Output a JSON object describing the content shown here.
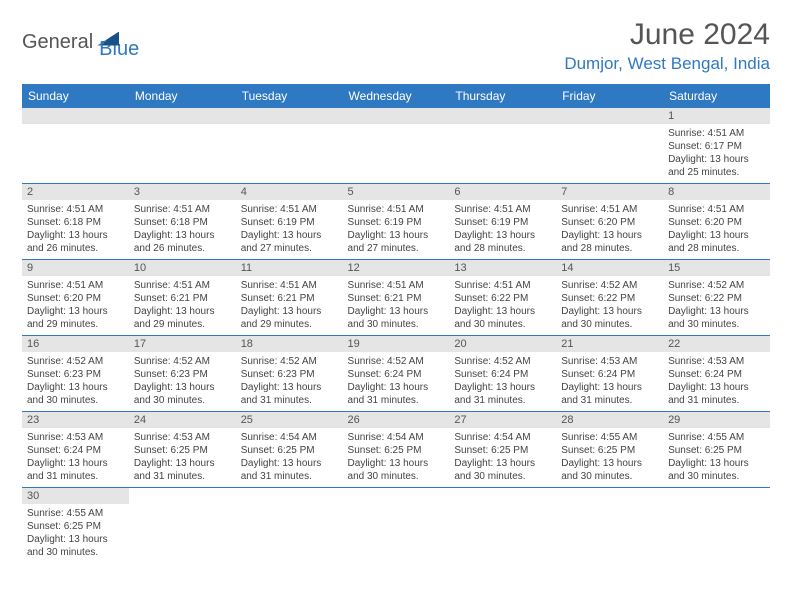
{
  "logo": {
    "part1": "General",
    "part2": "Blue"
  },
  "title": "June 2024",
  "subtitle": "Dumjor, West Bengal, India",
  "colors": {
    "accent": "#2f79c2",
    "header_bg": "#2f79c2",
    "header_text": "#ffffff",
    "daynum_bg": "#e5e5e5",
    "border": "#2f79c2",
    "text": "#444444"
  },
  "weekdays": [
    "Sunday",
    "Monday",
    "Tuesday",
    "Wednesday",
    "Thursday",
    "Friday",
    "Saturday"
  ],
  "weeks": [
    [
      null,
      null,
      null,
      null,
      null,
      null,
      {
        "n": "1",
        "sr": "4:51 AM",
        "ss": "6:17 PM",
        "dl": "13 hours and 25 minutes."
      }
    ],
    [
      {
        "n": "2",
        "sr": "4:51 AM",
        "ss": "6:18 PM",
        "dl": "13 hours and 26 minutes."
      },
      {
        "n": "3",
        "sr": "4:51 AM",
        "ss": "6:18 PM",
        "dl": "13 hours and 26 minutes."
      },
      {
        "n": "4",
        "sr": "4:51 AM",
        "ss": "6:19 PM",
        "dl": "13 hours and 27 minutes."
      },
      {
        "n": "5",
        "sr": "4:51 AM",
        "ss": "6:19 PM",
        "dl": "13 hours and 27 minutes."
      },
      {
        "n": "6",
        "sr": "4:51 AM",
        "ss": "6:19 PM",
        "dl": "13 hours and 28 minutes."
      },
      {
        "n": "7",
        "sr": "4:51 AM",
        "ss": "6:20 PM",
        "dl": "13 hours and 28 minutes."
      },
      {
        "n": "8",
        "sr": "4:51 AM",
        "ss": "6:20 PM",
        "dl": "13 hours and 28 minutes."
      }
    ],
    [
      {
        "n": "9",
        "sr": "4:51 AM",
        "ss": "6:20 PM",
        "dl": "13 hours and 29 minutes."
      },
      {
        "n": "10",
        "sr": "4:51 AM",
        "ss": "6:21 PM",
        "dl": "13 hours and 29 minutes."
      },
      {
        "n": "11",
        "sr": "4:51 AM",
        "ss": "6:21 PM",
        "dl": "13 hours and 29 minutes."
      },
      {
        "n": "12",
        "sr": "4:51 AM",
        "ss": "6:21 PM",
        "dl": "13 hours and 30 minutes."
      },
      {
        "n": "13",
        "sr": "4:51 AM",
        "ss": "6:22 PM",
        "dl": "13 hours and 30 minutes."
      },
      {
        "n": "14",
        "sr": "4:52 AM",
        "ss": "6:22 PM",
        "dl": "13 hours and 30 minutes."
      },
      {
        "n": "15",
        "sr": "4:52 AM",
        "ss": "6:22 PM",
        "dl": "13 hours and 30 minutes."
      }
    ],
    [
      {
        "n": "16",
        "sr": "4:52 AM",
        "ss": "6:23 PM",
        "dl": "13 hours and 30 minutes."
      },
      {
        "n": "17",
        "sr": "4:52 AM",
        "ss": "6:23 PM",
        "dl": "13 hours and 30 minutes."
      },
      {
        "n": "18",
        "sr": "4:52 AM",
        "ss": "6:23 PM",
        "dl": "13 hours and 31 minutes."
      },
      {
        "n": "19",
        "sr": "4:52 AM",
        "ss": "6:24 PM",
        "dl": "13 hours and 31 minutes."
      },
      {
        "n": "20",
        "sr": "4:52 AM",
        "ss": "6:24 PM",
        "dl": "13 hours and 31 minutes."
      },
      {
        "n": "21",
        "sr": "4:53 AM",
        "ss": "6:24 PM",
        "dl": "13 hours and 31 minutes."
      },
      {
        "n": "22",
        "sr": "4:53 AM",
        "ss": "6:24 PM",
        "dl": "13 hours and 31 minutes."
      }
    ],
    [
      {
        "n": "23",
        "sr": "4:53 AM",
        "ss": "6:24 PM",
        "dl": "13 hours and 31 minutes."
      },
      {
        "n": "24",
        "sr": "4:53 AM",
        "ss": "6:25 PM",
        "dl": "13 hours and 31 minutes."
      },
      {
        "n": "25",
        "sr": "4:54 AM",
        "ss": "6:25 PM",
        "dl": "13 hours and 31 minutes."
      },
      {
        "n": "26",
        "sr": "4:54 AM",
        "ss": "6:25 PM",
        "dl": "13 hours and 30 minutes."
      },
      {
        "n": "27",
        "sr": "4:54 AM",
        "ss": "6:25 PM",
        "dl": "13 hours and 30 minutes."
      },
      {
        "n": "28",
        "sr": "4:55 AM",
        "ss": "6:25 PM",
        "dl": "13 hours and 30 minutes."
      },
      {
        "n": "29",
        "sr": "4:55 AM",
        "ss": "6:25 PM",
        "dl": "13 hours and 30 minutes."
      }
    ],
    [
      {
        "n": "30",
        "sr": "4:55 AM",
        "ss": "6:25 PM",
        "dl": "13 hours and 30 minutes."
      },
      null,
      null,
      null,
      null,
      null,
      null
    ]
  ],
  "labels": {
    "sunrise": "Sunrise:",
    "sunset": "Sunset:",
    "daylight": "Daylight:"
  }
}
